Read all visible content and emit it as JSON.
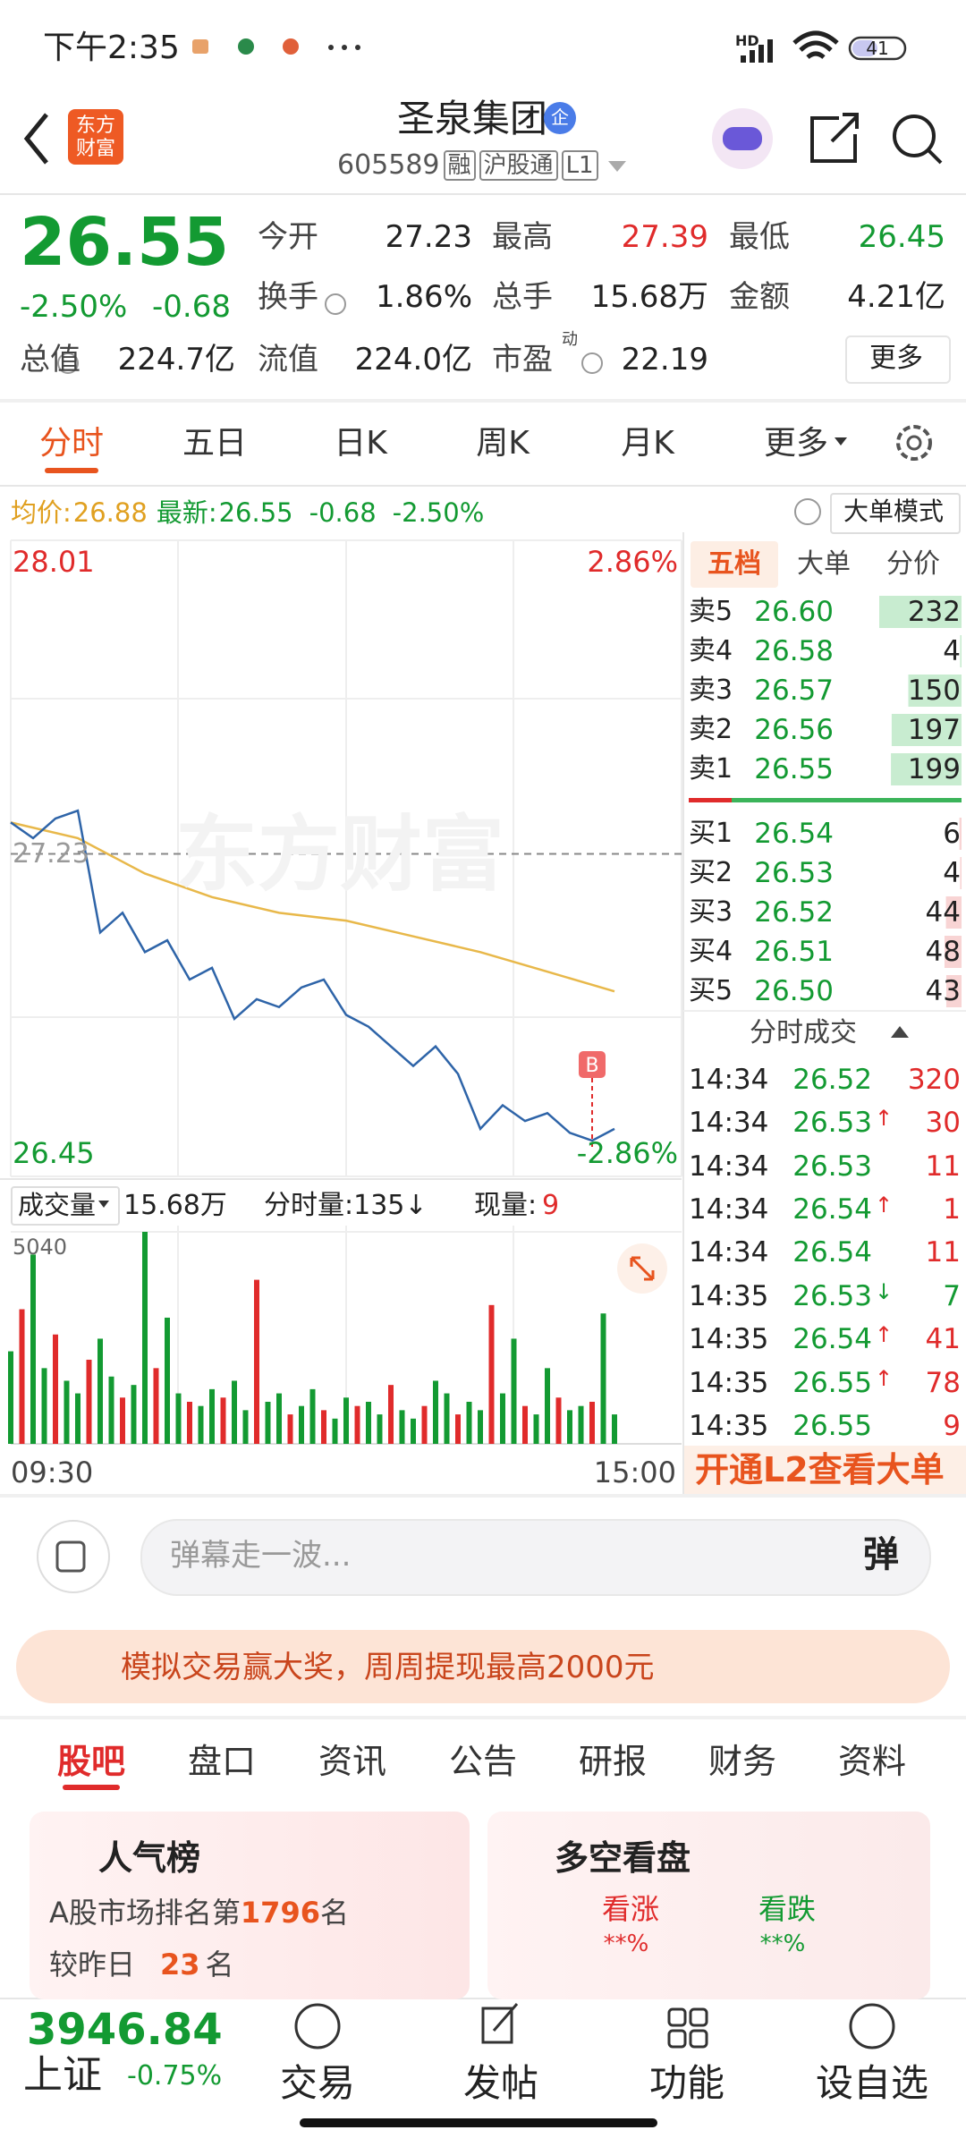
{
  "status": {
    "time": "下午2:35",
    "hd": "HD",
    "battery": "41"
  },
  "header": {
    "logo": [
      "东方",
      "财富"
    ],
    "title": "圣泉集团",
    "badge": "企",
    "code": "605589",
    "tags": [
      "融",
      "沪股通",
      "L1"
    ]
  },
  "quote": {
    "price": "26.55",
    "change_pct": "-2.50%",
    "change": "-0.68",
    "fields": [
      {
        "label": "今开",
        "value": "27.23"
      },
      {
        "label": "最高",
        "value": "27.39"
      },
      {
        "label": "最低",
        "value": "26.45"
      },
      {
        "label": "换手",
        "value": "1.86%"
      },
      {
        "label": "总手",
        "value": "15.68万"
      },
      {
        "label": "金额",
        "value": "4.21亿"
      },
      {
        "label": "总值",
        "value": "224.7亿"
      },
      {
        "label": "流值",
        "value": "224.0亿"
      },
      {
        "label": "市盈",
        "sup": "动",
        "value": "22.19"
      }
    ],
    "more": "更多"
  },
  "tabs": [
    "分时",
    "五日",
    "日K",
    "周K",
    "月K",
    "更多"
  ],
  "info": {
    "avg_label": "均价:",
    "avg": "26.88",
    "latest_label": "最新:",
    "latest": "26.55",
    "change": "-0.68",
    "change_pct": "-2.50%",
    "mode": "大单模式"
  },
  "intraday": {
    "ylim": [
      26.45,
      28.01
    ],
    "prev_close": 27.23,
    "pct_top": "2.86%",
    "pct_bottom": "-2.86%",
    "xlim": [
      0,
      240
    ],
    "x_labels": [
      "09:30",
      "15:00"
    ],
    "watermark": "东方财富",
    "marker": "B",
    "price": {
      "x": [
        0,
        8,
        16,
        24,
        32,
        40,
        48,
        56,
        64,
        72,
        80,
        88,
        96,
        104,
        112,
        120,
        128,
        136,
        144,
        152,
        160,
        168,
        176,
        184,
        192,
        200,
        208,
        216
      ],
      "values": [
        27.31,
        27.27,
        27.32,
        27.34,
        27.03,
        27.08,
        26.98,
        27.01,
        26.91,
        26.94,
        26.81,
        26.86,
        26.84,
        26.89,
        26.91,
        26.82,
        26.79,
        26.74,
        26.69,
        26.74,
        26.67,
        26.53,
        26.59,
        26.55,
        26.57,
        26.52,
        26.5,
        26.53
      ]
    },
    "avg": {
      "x": [
        0,
        24,
        48,
        72,
        96,
        120,
        144,
        168,
        192,
        216
      ],
      "values": [
        27.31,
        27.27,
        27.18,
        27.12,
        27.08,
        27.06,
        27.02,
        26.98,
        26.93,
        26.88
      ]
    }
  },
  "volume": {
    "label": "成交量",
    "total": "15.68万",
    "minute": "分时量:135↓",
    "current_label": "现量:",
    "current": "9",
    "ylim": [
      0,
      5040
    ],
    "x": [
      0,
      4,
      8,
      12,
      16,
      20,
      24,
      28,
      32,
      36,
      40,
      44,
      48,
      52,
      56,
      60,
      64,
      68,
      72,
      76,
      80,
      84,
      88,
      92,
      96,
      100,
      104,
      108,
      112,
      116,
      120,
      124,
      128,
      132,
      136,
      140,
      144,
      148,
      152,
      156,
      160,
      164,
      168,
      172,
      176,
      180,
      184,
      188,
      192,
      196,
      200,
      204,
      208,
      212,
      216
    ],
    "values": [
      2200,
      3200,
      4500,
      1800,
      2600,
      1500,
      1200,
      2000,
      2500,
      1600,
      1100,
      1400,
      5040,
      1800,
      3000,
      1200,
      1000,
      900,
      1300,
      1100,
      1500,
      800,
      3900,
      1000,
      1200,
      700,
      900,
      1300,
      800,
      600,
      1100,
      900,
      1000,
      700,
      1400,
      800,
      600,
      900,
      1500,
      1200,
      700,
      1000,
      800,
      3300,
      1200,
      2500,
      900,
      700,
      1800,
      1100,
      800,
      900,
      1000,
      3100,
      700
    ]
  },
  "book": {
    "tabs": [
      "五档",
      "大单",
      "分价"
    ],
    "asks": [
      {
        "label": "卖5",
        "price": "26.60",
        "volume": 232
      },
      {
        "label": "卖4",
        "price": "26.58",
        "volume": 4
      },
      {
        "label": "卖3",
        "price": "26.57",
        "volume": 150
      },
      {
        "label": "卖2",
        "price": "26.56",
        "volume": 197
      },
      {
        "label": "卖1",
        "price": "26.55",
        "volume": 199
      }
    ],
    "bids": [
      {
        "label": "买1",
        "price": "26.54",
        "volume": 6
      },
      {
        "label": "买2",
        "price": "26.53",
        "volume": 4
      },
      {
        "label": "买3",
        "price": "26.52",
        "volume": 44
      },
      {
        "label": "买4",
        "price": "26.51",
        "volume": 48
      },
      {
        "label": "买5",
        "price": "26.50",
        "volume": 43
      }
    ],
    "trades_title": "分时成交",
    "trades": [
      {
        "time": "14:34",
        "price": "26.52",
        "volume": 320
      },
      {
        "time": "14:34",
        "price": "26.53",
        "arrow": "↑",
        "volume": 30
      },
      {
        "time": "14:34",
        "price": "26.53",
        "volume": 11
      },
      {
        "time": "14:34",
        "price": "26.54",
        "arrow": "↑",
        "volume": 1
      },
      {
        "time": "14:34",
        "price": "26.54",
        "volume": 11
      },
      {
        "time": "14:35",
        "price": "26.53",
        "arrow": "↓",
        "volume": 7
      },
      {
        "time": "14:35",
        "price": "26.54",
        "arrow": "↑",
        "volume": 41
      },
      {
        "time": "14:35",
        "price": "26.55",
        "arrow": "↑",
        "volume": 78
      },
      {
        "time": "14:35",
        "price": "26.55",
        "volume": 9
      }
    ],
    "l2": "开通L2查看大单"
  },
  "danmaku": {
    "placeholder": "弹幕走一波...",
    "button": "弹"
  },
  "promo": "模拟交易赢大奖，周周提现最高2000元",
  "tabs2": [
    "股吧",
    "盘口",
    "资讯",
    "公告",
    "研报",
    "财务",
    "资料"
  ],
  "popularity": {
    "title": "人气榜",
    "rank_prefix": "A股市场排名第",
    "rank": "1796",
    "rank_suffix": "名",
    "change_prefix": "较昨日",
    "change": "23",
    "change_suffix": "名"
  },
  "sentiment": {
    "title": "多空看盘",
    "up": "看涨",
    "up_pct": "**%",
    "down": "看跌",
    "down_pct": "**%"
  },
  "bottom": {
    "index": "3946.84",
    "index_name": "上证",
    "index_change": "-0.75%",
    "nav": [
      "交易",
      "发帖",
      "功能",
      "设自选"
    ]
  }
}
